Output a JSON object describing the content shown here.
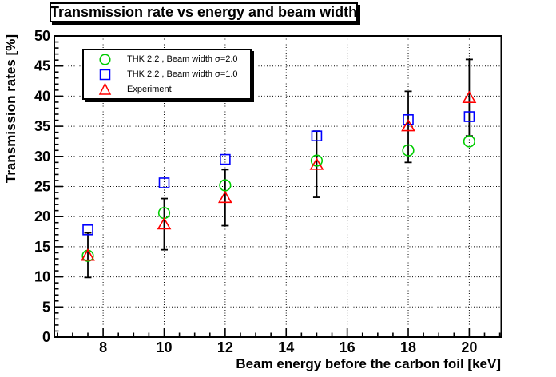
{
  "chart_data": {
    "type": "scatter",
    "title": "Transmission rate vs energy and beam width",
    "xlabel": "Beam energy before the carbon foil [keV]",
    "ylabel": "Transmission rates [%]",
    "xlim": [
      6.4,
      21.05
    ],
    "ylim": [
      0,
      50
    ],
    "x_major_ticks": [
      8,
      10,
      12,
      14,
      16,
      18,
      20
    ],
    "x_minor_step": 0.5,
    "y_major_step": 5,
    "y_minor_step": 1,
    "grid": "dotted lines at every major tick, both axes",
    "legend_position": "top-left-inside",
    "frame_color": "#000000",
    "x": [
      7.5,
      10,
      12,
      15,
      18,
      20
    ],
    "series": [
      {
        "name": "THK 2.2 , Beam width σ=2.0",
        "marker": "circle",
        "color": "#00cc00",
        "values": [
          13.5,
          20.6,
          25.2,
          29.3,
          31.0,
          32.5
        ]
      },
      {
        "name": "THK 2.2 , Beam width σ=1.0",
        "marker": "square",
        "color": "#0000ff",
        "values": [
          17.8,
          25.6,
          29.5,
          33.4,
          36.1,
          36.6
        ]
      },
      {
        "name": "Experiment",
        "marker": "triangle",
        "color": "#ff0000",
        "values": [
          13.5,
          18.7,
          23.1,
          28.6,
          35.0,
          39.7
        ],
        "error_low": [
          9.9,
          14.5,
          18.5,
          23.2,
          29.0,
          33.4
        ],
        "error_high": [
          17.3,
          23.0,
          27.8,
          34.2,
          40.8,
          46.1
        ],
        "error_color": "#000000"
      }
    ]
  }
}
